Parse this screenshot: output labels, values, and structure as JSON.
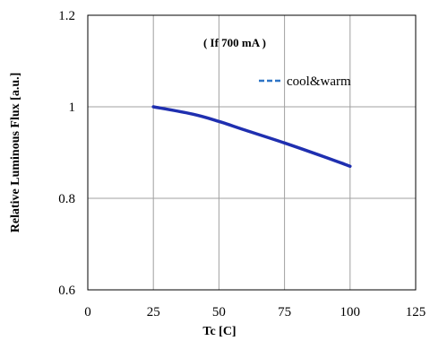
{
  "chart_data": {
    "type": "line",
    "title": "",
    "annotation": "( If  700 mA )",
    "xlabel": "Tc [C]",
    "ylabel": "Relative  Luminous  Flux  [a.u.]",
    "xlim": [
      0,
      125
    ],
    "ylim": [
      0.6,
      1.2
    ],
    "x_ticks": [
      "0",
      "25",
      "50",
      "75",
      "100",
      "125"
    ],
    "y_ticks": [
      "0.6",
      "0.8",
      "1",
      "1.2"
    ],
    "grid": true,
    "legend_position": "top-right",
    "series": [
      {
        "name": "cool&warm",
        "color": "#1f2fb0",
        "legend_color": "#2e75c6",
        "x": [
          25,
          40,
          50,
          60,
          75,
          90,
          100
        ],
        "y": [
          1.0,
          0.984,
          0.968,
          0.949,
          0.921,
          0.891,
          0.87
        ]
      }
    ]
  }
}
